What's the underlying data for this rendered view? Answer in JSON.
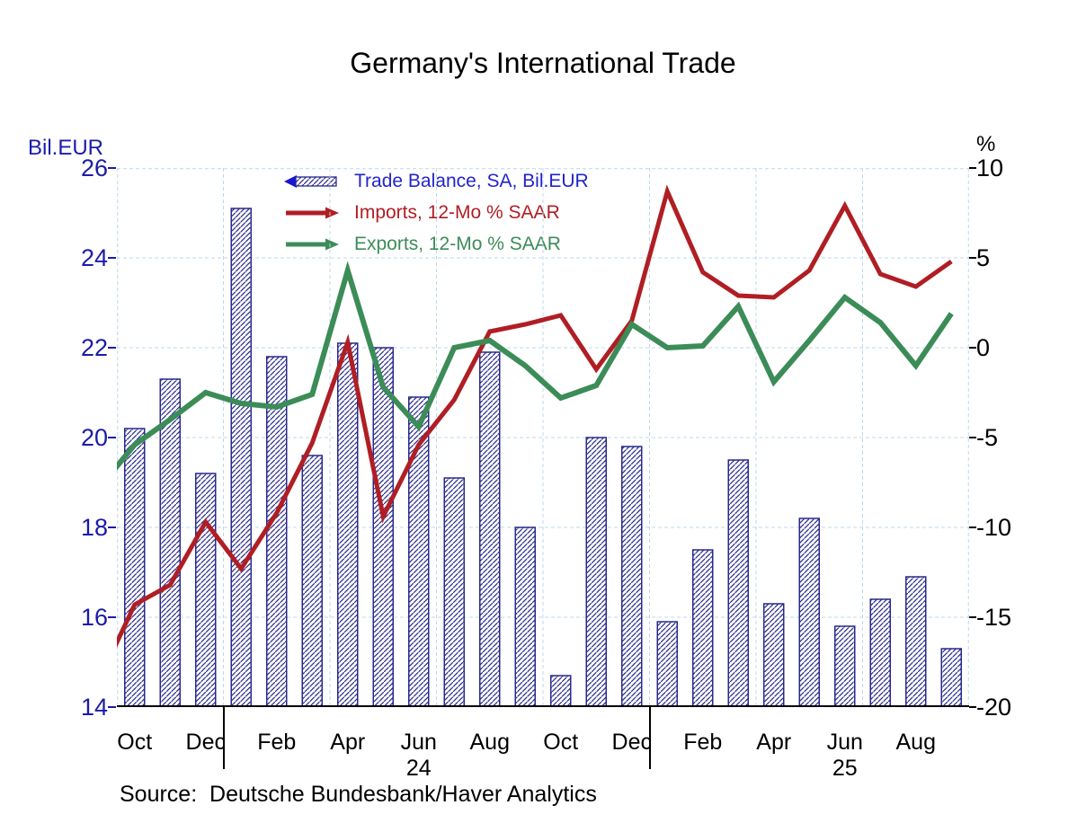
{
  "title": "Germany's International Trade",
  "source_line": "Source:  Deutsche Bundesbank/Haver Analytics",
  "legend": [
    {
      "label": "Trade Balance, SA, Bil.EUR",
      "color": "#1717d4",
      "text_color": "#2323cc",
      "series": "trade_balance",
      "arrow_direction": "left"
    },
    {
      "label": "Imports, 12-Mo % SAAR",
      "color": "#b01e24",
      "text_color": "#b01e24",
      "series": "imports",
      "arrow_direction": "right"
    },
    {
      "label": "Exports, 12-Mo % SAAR",
      "color": "#3c8c58",
      "text_color": "#3c8c58",
      "series": "exports",
      "arrow_direction": "right"
    }
  ],
  "chart_data": {
    "type": "bar+line dual-axis combo",
    "title": "Germany's International Trade",
    "months": [
      "Oct-23",
      "Nov-23",
      "Dec-23",
      "Jan-24",
      "Feb-24",
      "Mar-24",
      "Apr-24",
      "May-24",
      "Jun-24",
      "Jul-24",
      "Aug-24",
      "Sep-24",
      "Oct-24",
      "Nov-24",
      "Dec-24",
      "Jan-25",
      "Feb-25",
      "Mar-25",
      "Apr-25",
      "May-25",
      "Jun-25",
      "Jul-25",
      "Aug-25",
      "Sep-25"
    ],
    "x_axis": {
      "tick_labels": [
        "Oct",
        "Dec",
        "Feb",
        "Apr",
        "Jun",
        "Aug",
        "Oct",
        "Dec",
        "Feb",
        "Apr",
        "Jun",
        "Aug"
      ],
      "tick_label_month_step": 2,
      "year_labels": [
        "24",
        "25"
      ],
      "year_label_month_indices": [
        8,
        20
      ],
      "year_separator_month_indices": [
        3,
        15
      ]
    },
    "left_axis": {
      "label": "Bil.EUR",
      "ticks": [
        26,
        24,
        22,
        20,
        18,
        16,
        14
      ],
      "range": [
        14,
        26
      ],
      "color": "#1b1baa"
    },
    "right_axis": {
      "label": "%",
      "ticks": [
        10,
        5,
        0,
        -5,
        -10,
        -15,
        -20
      ],
      "range": [
        -20,
        10
      ],
      "color": "#000000"
    },
    "bars": {
      "name": "Trade Balance, SA, Bil.EUR",
      "axis": "left",
      "color": "#28288c",
      "pattern": "diagonal hatch",
      "values": [
        20.2,
        21.3,
        19.2,
        25.1,
        21.8,
        19.6,
        22.1,
        22.0,
        20.9,
        19.1,
        21.9,
        18.0,
        14.7,
        20.0,
        19.8,
        15.9,
        17.5,
        19.5,
        16.3,
        18.2,
        15.8,
        16.4,
        16.9,
        15.3
      ]
    },
    "lines": [
      {
        "name": "Imports, 12-Mo % SAAR",
        "axis": "right",
        "color": "#b01e24",
        "width": 5,
        "months": [
          "Sep-23",
          "Oct-23",
          "Nov-23",
          "Dec-23",
          "Jan-24",
          "Feb-24",
          "Mar-24",
          "Apr-24",
          "May-24",
          "Jun-24",
          "Jul-24",
          "Aug-24",
          "Sep-24",
          "Oct-24",
          "Nov-24",
          "Dec-24",
          "Jan-25",
          "Feb-25",
          "Mar-25",
          "Apr-25",
          "May-25",
          "Jun-25",
          "Jul-25",
          "Aug-25",
          "Sep-25"
        ],
        "values": [
          -18.5,
          -14.3,
          -13.2,
          -9.7,
          -12.3,
          -9.2,
          -5.3,
          0.3,
          -9.4,
          -5.4,
          -2.9,
          0.9,
          1.3,
          1.8,
          -1.2,
          1.5,
          8.7,
          4.2,
          2.9,
          2.8,
          4.3,
          7.9,
          4.1,
          3.4,
          4.8
        ]
      },
      {
        "name": "Exports, 12-Mo % SAAR",
        "axis": "right",
        "color": "#3c8c58",
        "width": 6,
        "months": [
          "Sep-23",
          "Oct-23",
          "Nov-23",
          "Dec-23",
          "Jan-24",
          "Feb-24",
          "Mar-24",
          "Apr-24",
          "May-24",
          "Jun-24",
          "Jul-24",
          "Aug-24",
          "Sep-24",
          "Oct-24",
          "Nov-24",
          "Dec-24",
          "Jan-25",
          "Feb-25",
          "Mar-25",
          "Apr-25",
          "May-25",
          "Jun-25",
          "Jul-25",
          "Aug-25",
          "Sep-25"
        ],
        "values": [
          -7.8,
          -5.4,
          -4.0,
          -2.5,
          -3.1,
          -3.3,
          -2.6,
          4.3,
          -2.2,
          -4.4,
          0.0,
          0.4,
          -1.0,
          -2.8,
          -2.1,
          1.3,
          0.0,
          0.1,
          2.3,
          -1.9,
          0.4,
          2.8,
          1.4,
          -1.0,
          1.9
        ]
      }
    ],
    "grid": {
      "horizontal": "at left-axis ticks",
      "vertical": "quarterly",
      "style": "light blue dashed"
    }
  }
}
